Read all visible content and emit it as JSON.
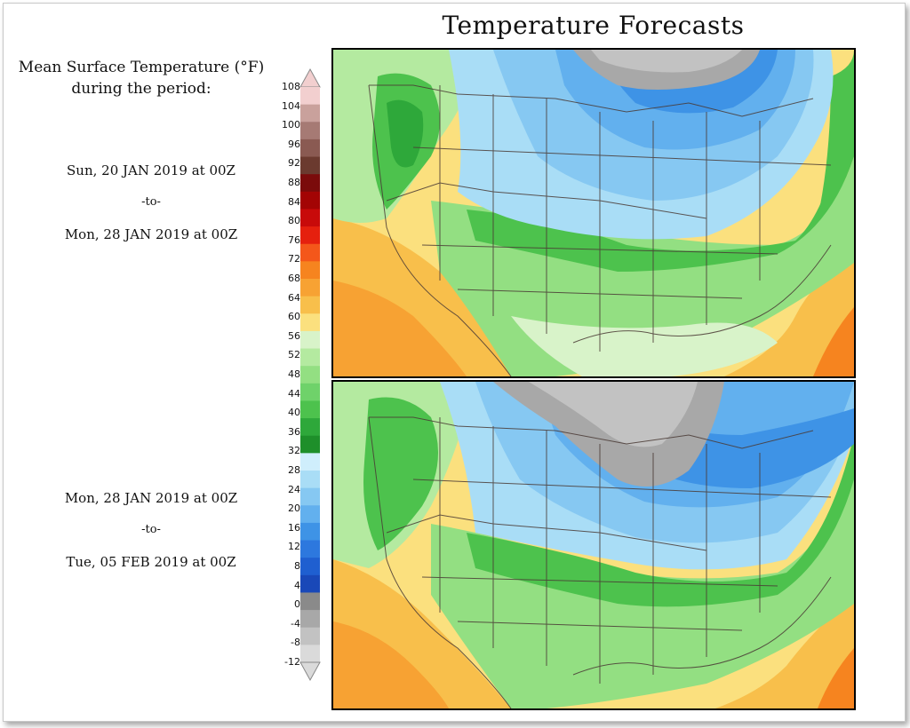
{
  "title": "Temperature Forecasts",
  "legend": {
    "title_line1": "Mean Surface Temperature (°F)",
    "title_line2": "during the period:",
    "ticks": [
      "108",
      "104",
      "100",
      "96",
      "92",
      "88",
      "84",
      "80",
      "76",
      "72",
      "68",
      "64",
      "60",
      "56",
      "52",
      "48",
      "44",
      "40",
      "36",
      "32",
      "28",
      "24",
      "20",
      "16",
      "12",
      "8",
      "4",
      "0",
      "-4",
      "-8",
      "-12"
    ],
    "colors": [
      "#f2cfcf",
      "#c9a19c",
      "#a67a74",
      "#8a5a52",
      "#6b3a2f",
      "#7b0b0b",
      "#a30404",
      "#c80a0a",
      "#e5200e",
      "#f4571a",
      "#f6841f",
      "#f7a233",
      "#f8bf4b",
      "#fbe07e",
      "#d8f3c9",
      "#b4eaa0",
      "#93df82",
      "#6fd26a",
      "#4dc24d",
      "#2ea83a",
      "#1e8f2a",
      "#cfeefc",
      "#a9ddf6",
      "#86c8f2",
      "#62b0ee",
      "#3e93e6",
      "#2d78de",
      "#1f5fd0",
      "#1948b8",
      "#8a8a8a",
      "#a8a8a8",
      "#c2c2c2",
      "#dadada"
    ]
  },
  "periods": [
    {
      "start": "Sun, 20 JAN 2019 at 00Z",
      "sep": "-to-",
      "end": "Mon, 28 JAN 2019 at 00Z"
    },
    {
      "start": "Mon, 28 JAN 2019 at 00Z",
      "sep": "-to-",
      "end": "Tue, 05 FEB 2019 at 00Z"
    }
  ]
}
